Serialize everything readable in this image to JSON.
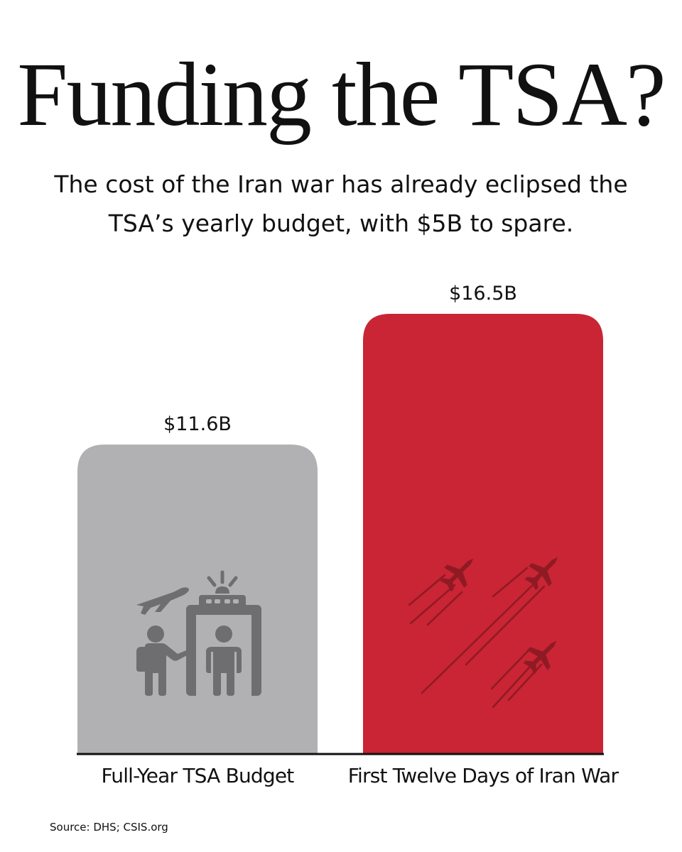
{
  "header": {
    "title": "Funding the TSA?",
    "subtitle": "The cost of the Iran war has already eclipsed the TSA’s yearly budget, with $5B to spare."
  },
  "chart_data": {
    "type": "bar",
    "categories": [
      "Full-Year TSA Budget",
      "First Twelve Days of Iran War"
    ],
    "values": [
      11.6,
      16.5
    ],
    "value_labels": [
      "$11.6B",
      "$16.5B"
    ],
    "unit": "billion USD",
    "colors": [
      "#b1b1b3",
      "#c92535"
    ],
    "icon_colors": [
      "#6e6e70",
      "#8f1a24"
    ],
    "icons": [
      "airport-security-icon",
      "fighter-jets-icon"
    ],
    "ylim": [
      0,
      16.5
    ],
    "grid": false,
    "legend": "none"
  },
  "footer": {
    "source": "Source: DHS; CSIS.org"
  },
  "colors": {
    "axis": "#111111",
    "text": "#111111",
    "background": "#ffffff"
  }
}
